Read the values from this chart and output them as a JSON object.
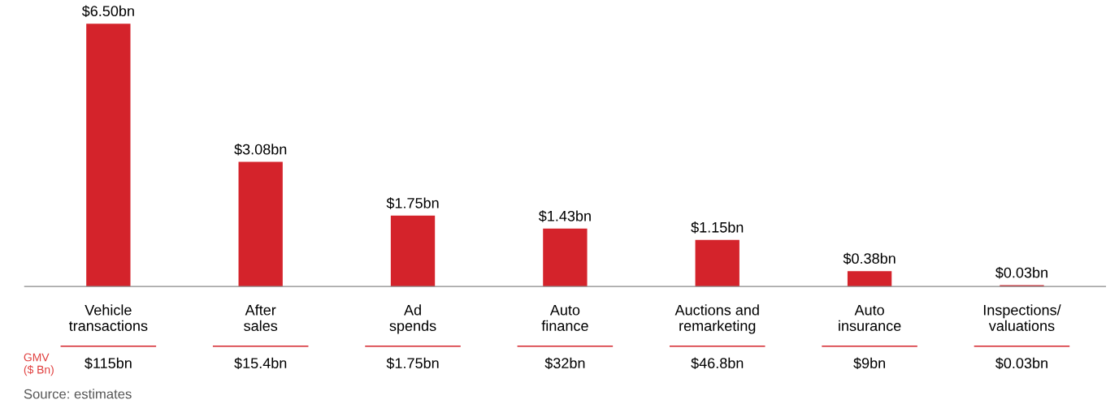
{
  "chart_data": {
    "type": "bar",
    "categories": [
      "Vehicle\ntransactions",
      "After\nsales",
      "Ad\nspends",
      "Auto\nfinance",
      "Auctions and\nremarketing",
      "Auto\ninsurance",
      "Inspections/\nvaluations"
    ],
    "values": [
      6.5,
      3.08,
      1.75,
      1.43,
      1.15,
      0.38,
      0.03
    ],
    "color": "#d4232b",
    "value_labels": [
      "$6.50bn",
      "$3.08bn",
      "$1.75bn",
      "$1.43bn",
      "$1.15bn",
      "$0.38bn",
      "$0.03bn"
    ],
    "grid": false,
    "legend": false,
    "annotations": [
      "GMV\n($ Bn)",
      "$115bn",
      "$15.4bn",
      "$1.75bn",
      "$32bn",
      "$46.8bn",
      "$9bn",
      "$0.03bn",
      "Source: estimates"
    ]
  }
}
